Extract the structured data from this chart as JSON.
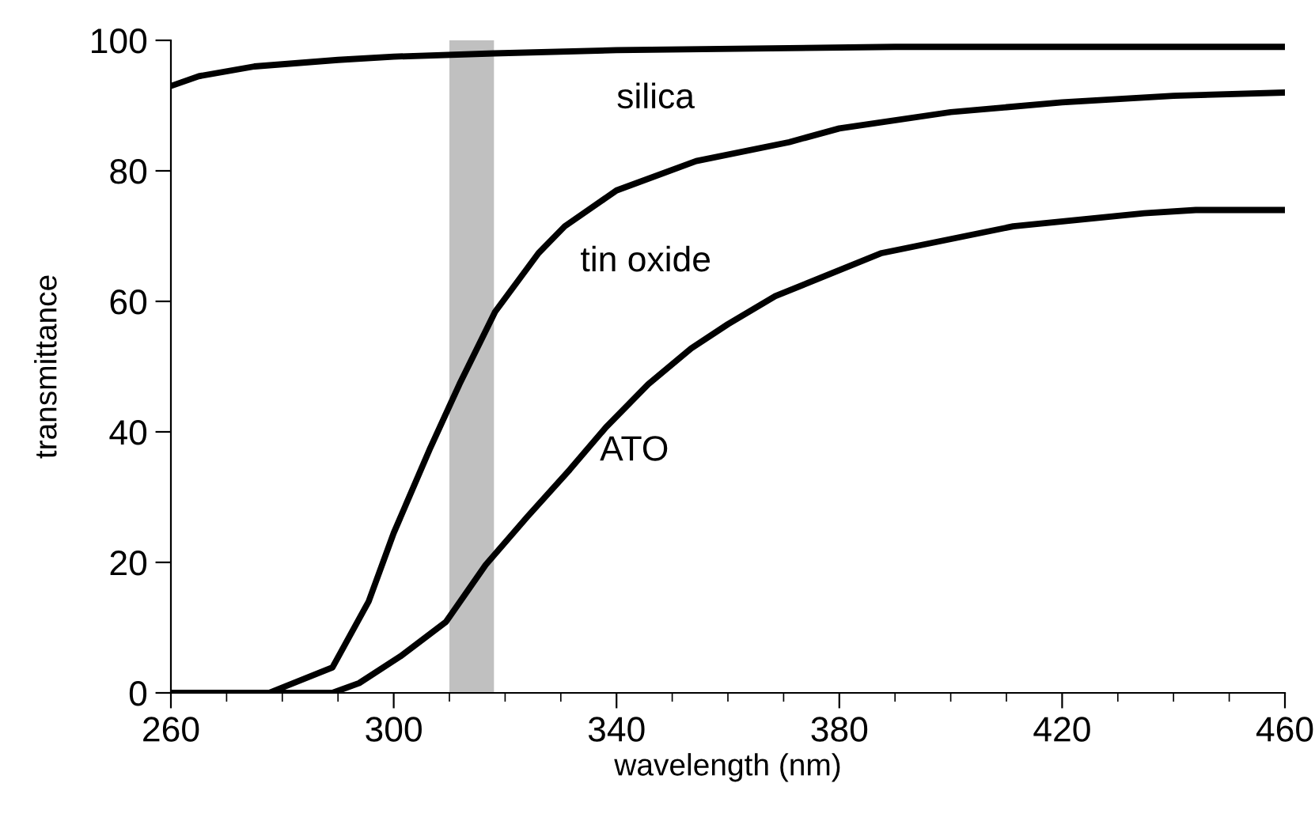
{
  "chart_data": {
    "type": "line",
    "xlabel": "wavelength (nm)",
    "ylabel": "transmittance",
    "xlim": [
      260,
      460
    ],
    "ylim": [
      0,
      100
    ],
    "xticks": [
      260,
      {
        "value": 270,
        "label": null
      },
      {
        "value": 280,
        "label": null
      },
      {
        "value": 290,
        "label": null
      },
      300,
      {
        "value": 310,
        "label": null
      },
      {
        "value": 320,
        "label": null
      },
      {
        "value": 330,
        "label": null
      },
      340,
      {
        "value": 350,
        "label": null
      },
      {
        "value": 360,
        "label": null
      },
      {
        "value": 370,
        "label": null
      },
      380,
      {
        "value": 390,
        "label": null
      },
      {
        "value": 400,
        "label": null
      },
      {
        "value": 410,
        "label": null
      },
      420,
      {
        "value": 430,
        "label": null
      },
      {
        "value": 440,
        "label": null
      },
      {
        "value": 450,
        "label": null
      },
      460
    ],
    "yticks": [
      0,
      20,
      40,
      60,
      80,
      100
    ],
    "grid": false,
    "legend": false,
    "marker": "none",
    "line_style": "solid",
    "bands": [
      {
        "axis": "x",
        "from": 310,
        "to": 318,
        "color": "#c0c0c0"
      }
    ],
    "series": [
      {
        "name": "silica",
        "color": "#000000",
        "x": [
          260,
          265,
          275,
          290,
          300,
          318,
          340,
          390,
          420,
          460
        ],
        "values": [
          93,
          94.5,
          96,
          97,
          97.5,
          98,
          98.5,
          99,
          99,
          99
        ]
      },
      {
        "name": "tin oxide",
        "color": "#000000",
        "x": [
          260,
          277.6,
          289,
          295.5,
          300,
          306.6,
          311.8,
          318.2,
          326,
          330.7,
          340,
          354.3,
          371,
          380,
          400,
          420,
          440,
          460
        ],
        "values": [
          0,
          0,
          3.9,
          14,
          24.5,
          37.6,
          47.3,
          58.4,
          67.4,
          71.5,
          77,
          81.5,
          84.4,
          86.5,
          89,
          90.5,
          91.5,
          92
        ]
      },
      {
        "name": "ATO",
        "color": "#000000",
        "x": [
          260,
          289,
          293.8,
          301.2,
          309.4,
          316.5,
          324,
          331.6,
          338.1,
          345.7,
          353.4,
          360,
          368.5,
          387.6,
          411.2,
          434.7,
          444,
          460
        ],
        "values": [
          0,
          0,
          1.5,
          5.6,
          10.9,
          19.6,
          27,
          34.2,
          40.7,
          47.3,
          52.8,
          56.5,
          60.8,
          67.4,
          71.5,
          73.5,
          74,
          74
        ]
      }
    ]
  }
}
